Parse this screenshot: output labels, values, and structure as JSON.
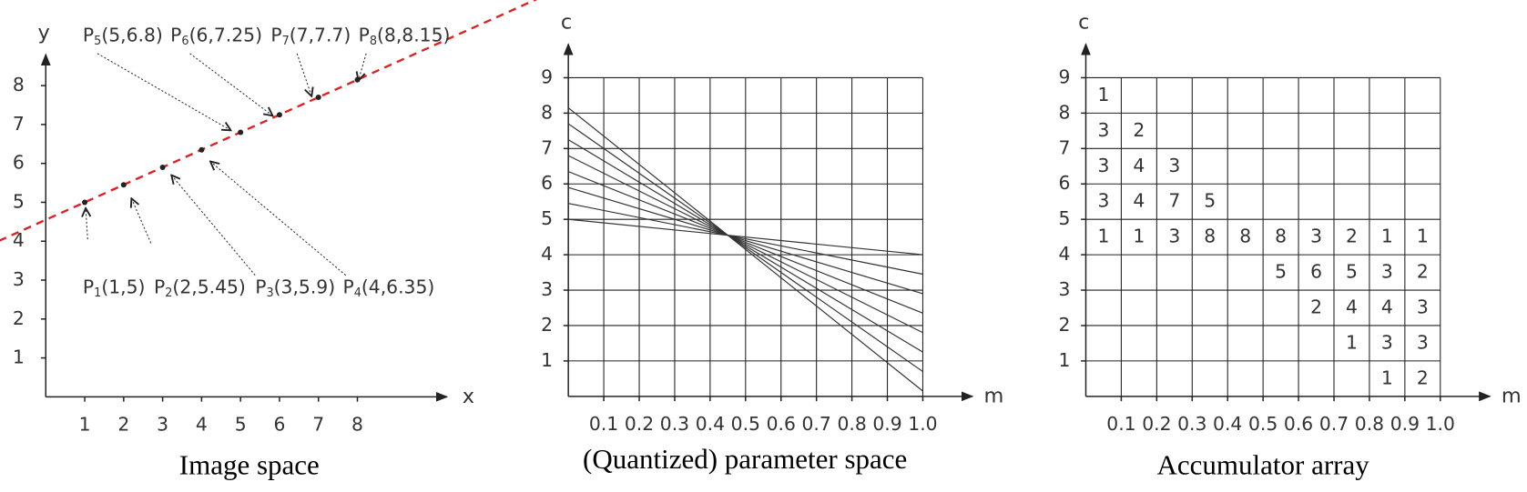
{
  "image_space": {
    "caption": "Image space",
    "x_label": "x",
    "y_label": "y",
    "xlim": [
      0,
      10.3
    ],
    "ylim": [
      0,
      8.8
    ],
    "xticks": [
      1,
      2,
      3,
      4,
      5,
      6,
      7,
      8
    ],
    "yticks": [
      1,
      2,
      3,
      4,
      5,
      6,
      7,
      8
    ],
    "fit_line": {
      "slope": 0.45,
      "intercept": 4.55,
      "color": "#e02020"
    },
    "points": [
      {
        "name": "P",
        "index": "1",
        "coords": "(1,5)",
        "x": 1,
        "y": 5
      },
      {
        "name": "P",
        "index": "2",
        "coords": "(2,5.45)",
        "x": 2,
        "y": 5.45
      },
      {
        "name": "P",
        "index": "3",
        "coords": "(3,5.9)",
        "x": 3,
        "y": 5.9
      },
      {
        "name": "P",
        "index": "4",
        "coords": "(4,6.35)",
        "x": 4,
        "y": 6.35
      },
      {
        "name": "P",
        "index": "5",
        "coords": "(5,6.8)",
        "x": 5,
        "y": 6.8
      },
      {
        "name": "P",
        "index": "6",
        "coords": "(6,7.25)",
        "x": 6,
        "y": 7.25
      },
      {
        "name": "P",
        "index": "7",
        "coords": "(7,7.7)",
        "x": 7,
        "y": 7.7
      },
      {
        "name": "P",
        "index": "8",
        "coords": "(8,8.15)",
        "x": 8,
        "y": 8.15
      }
    ]
  },
  "parameter_space": {
    "caption": "(Quantized) parameter space",
    "x_label": "m",
    "y_label": "c",
    "xlim": [
      0,
      1.14
    ],
    "ylim": [
      0,
      9.95
    ],
    "xticks": [
      0.1,
      0.2,
      0.3,
      0.4,
      0.5,
      0.6,
      0.7,
      0.8,
      0.9,
      {
        "value": 1,
        "label": "1.0"
      }
    ],
    "yticks": [
      1,
      2,
      3,
      4,
      5,
      6,
      7,
      8,
      9
    ]
  },
  "accumulator": {
    "caption": "Accumulator array",
    "x_label": "m",
    "y_label": "c",
    "xlim": [
      0,
      1.14
    ],
    "ylim": [
      0,
      9.95
    ],
    "xticks": [
      0.1,
      0.2,
      0.3,
      0.4,
      0.5,
      0.6,
      0.7,
      0.8,
      0.9,
      {
        "value": 1,
        "label": "1.0"
      }
    ],
    "yticks": [
      1,
      2,
      3,
      4,
      5,
      6,
      7,
      8,
      9
    ],
    "rows": [
      [
        1,
        null,
        null,
        null,
        null,
        null,
        null,
        null,
        null,
        null
      ],
      [
        3,
        2,
        null,
        null,
        null,
        null,
        null,
        null,
        null,
        null
      ],
      [
        3,
        4,
        3,
        null,
        null,
        null,
        null,
        null,
        null,
        null
      ],
      [
        3,
        4,
        7,
        5,
        null,
        null,
        null,
        null,
        null,
        null
      ],
      [
        1,
        1,
        3,
        8,
        8,
        8,
        3,
        2,
        1,
        1
      ],
      [
        null,
        null,
        null,
        null,
        null,
        5,
        6,
        5,
        3,
        2
      ],
      [
        null,
        null,
        null,
        null,
        null,
        null,
        2,
        4,
        4,
        3
      ],
      [
        null,
        null,
        null,
        null,
        null,
        null,
        null,
        1,
        3,
        3
      ],
      [
        null,
        null,
        null,
        null,
        null,
        null,
        null,
        null,
        1,
        2
      ]
    ]
  }
}
